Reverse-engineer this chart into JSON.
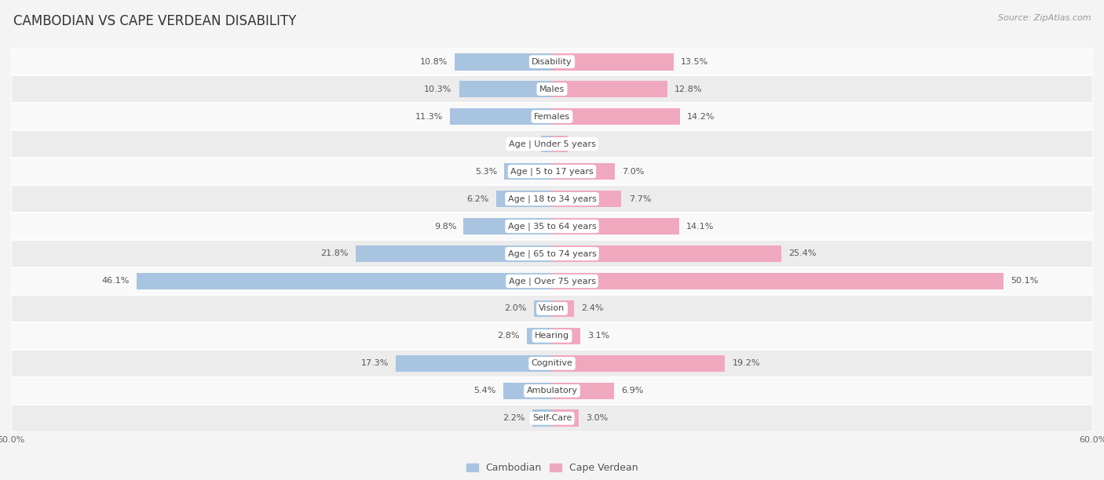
{
  "title": "CAMBODIAN VS CAPE VERDEAN DISABILITY",
  "source": "Source: ZipAtlas.com",
  "categories": [
    "Disability",
    "Males",
    "Females",
    "Age | Under 5 years",
    "Age | 5 to 17 years",
    "Age | 18 to 34 years",
    "Age | 35 to 64 years",
    "Age | 65 to 74 years",
    "Age | Over 75 years",
    "Vision",
    "Hearing",
    "Cognitive",
    "Ambulatory",
    "Self-Care"
  ],
  "cambodian": [
    10.8,
    10.3,
    11.3,
    1.2,
    5.3,
    6.2,
    9.8,
    21.8,
    46.1,
    2.0,
    2.8,
    17.3,
    5.4,
    2.2
  ],
  "cape_verdean": [
    13.5,
    12.8,
    14.2,
    1.7,
    7.0,
    7.7,
    14.1,
    25.4,
    50.1,
    2.4,
    3.1,
    19.2,
    6.9,
    3.0
  ],
  "cambodian_color": "#a8c4e0",
  "cape_verdean_color": "#f0a8be",
  "xlim": 60.0,
  "bar_height": 0.62,
  "background_color": "#f4f4f4",
  "row_bg_light": "#f9f9f9",
  "row_bg_dark": "#ececec",
  "title_fontsize": 12,
  "label_fontsize": 8,
  "value_fontsize": 8,
  "legend_fontsize": 9,
  "source_fontsize": 8
}
